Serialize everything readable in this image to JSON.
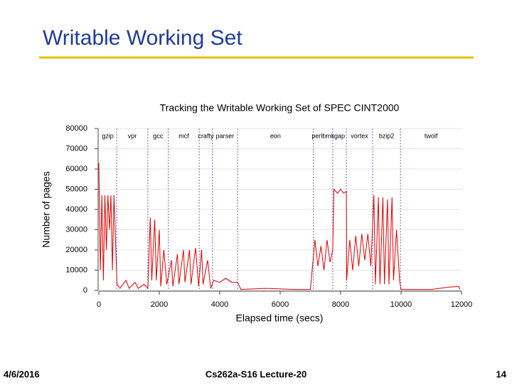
{
  "slide_title": "Writable Working Set",
  "footer": {
    "date": "4/6/2016",
    "center": "Cs262a-S16 Lecture-20",
    "page": "14"
  },
  "chart_data": {
    "type": "line",
    "title": "Tracking the Writable Working Set of SPEC CINT2000",
    "xlabel": "Elapsed time (secs)",
    "ylabel": "Number of pages",
    "xlim": [
      0,
      12000
    ],
    "xticks": [
      0,
      2000,
      4000,
      6000,
      8000,
      10000,
      12000
    ],
    "ylim": [
      0,
      80000
    ],
    "yticks": [
      0,
      10000,
      20000,
      30000,
      40000,
      50000,
      60000,
      70000,
      80000
    ],
    "grid": true,
    "benchmarks": [
      "gzip",
      "vpr",
      "gcc",
      "mcf",
      "crafty",
      "parser",
      "eon",
      "perlbmk",
      "gap",
      "vortex",
      "bzip2",
      "twolf"
    ],
    "boundaries": [
      0,
      590,
      1620,
      2300,
      3320,
      3760,
      4590,
      7100,
      7740,
      8190,
      9060,
      9980,
      12000
    ],
    "series": [
      {
        "color": "#e00000",
        "x": [
          0,
          50,
          100,
          150,
          200,
          250,
          300,
          350,
          400,
          450,
          500,
          550,
          600,
          700,
          900,
          1000,
          1200,
          1300,
          1500,
          1620,
          1700,
          1750,
          1850,
          1900,
          2000,
          2050,
          2150,
          2250,
          2400,
          2450,
          2600,
          2650,
          2800,
          2850,
          3000,
          3050,
          3200,
          3300,
          3400,
          3450,
          3600,
          3700,
          3800,
          4000,
          4200,
          4400,
          4590,
          4700,
          5500,
          6500,
          7000,
          7150,
          7250,
          7350,
          7450,
          7550,
          7650,
          7740,
          7780,
          7900,
          8000,
          8100,
          8190,
          8200,
          8300,
          8400,
          8500,
          8600,
          8700,
          8800,
          8900,
          9000,
          9100,
          9150,
          9250,
          9300,
          9400,
          9450,
          9550,
          9600,
          9700,
          9750,
          9850,
          9950,
          10000,
          11000,
          11500,
          11900,
          11950
        ],
        "values": [
          63000,
          10000,
          47000,
          5000,
          47000,
          20000,
          47000,
          30000,
          47000,
          10000,
          47000,
          25000,
          3000,
          1000,
          5000,
          1000,
          4000,
          1000,
          3000,
          1000,
          36000,
          5000,
          35000,
          5000,
          30000,
          2000,
          20000,
          3000,
          15000,
          2000,
          18000,
          3000,
          20000,
          4000,
          20000,
          3000,
          21000,
          2000,
          20000,
          3000,
          15000,
          1000,
          5000,
          4000,
          6000,
          4000,
          4000,
          500,
          1000,
          500,
          500,
          25000,
          12000,
          22000,
          10000,
          25000,
          14000,
          20000,
          50000,
          48000,
          50000,
          48000,
          49000,
          5000,
          25000,
          10000,
          27000,
          12000,
          28000,
          15000,
          28000,
          12000,
          47000,
          3000,
          46000,
          3000,
          46000,
          3000,
          45000,
          3000,
          46000,
          5000,
          30000,
          5000,
          500,
          500,
          1500,
          2000,
          500
        ]
      }
    ]
  }
}
